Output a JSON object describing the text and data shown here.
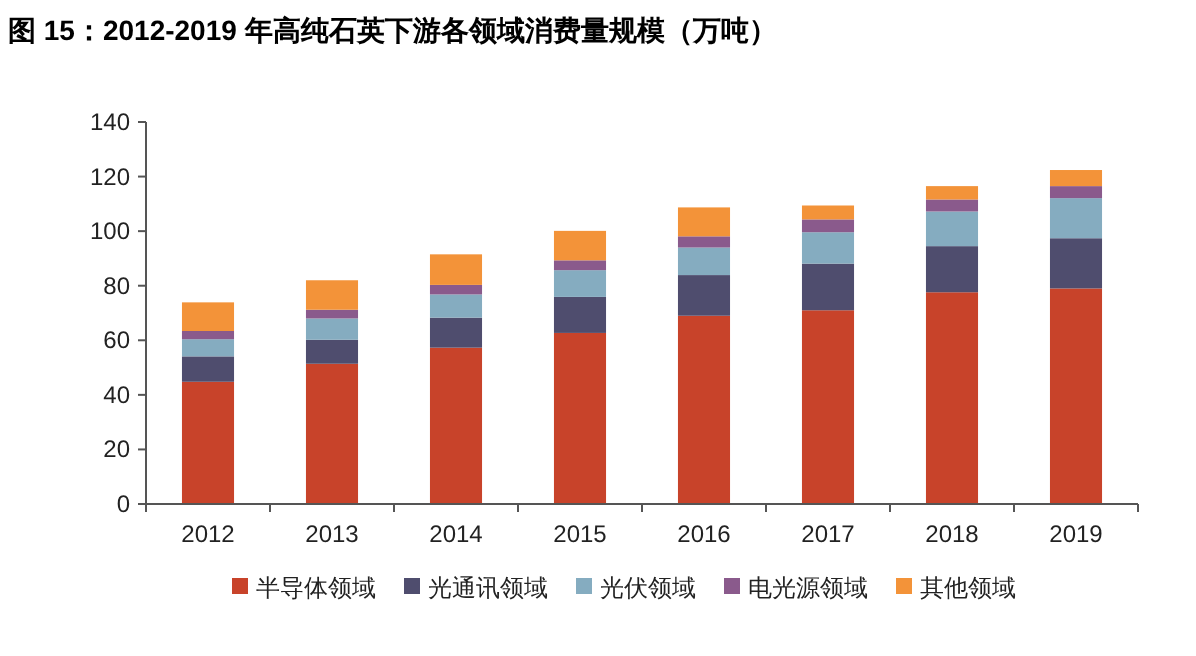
{
  "chart_data": {
    "type": "bar",
    "title": "图 15：2012-2019 年高纯石英下游各领域消费量规模（万吨）",
    "categories": [
      "2012",
      "2013",
      "2014",
      "2015",
      "2016",
      "2017",
      "2018",
      "2019"
    ],
    "stacked": true,
    "ylim": [
      0,
      140
    ],
    "yticks": [
      0,
      20,
      40,
      60,
      80,
      100,
      120,
      140
    ],
    "legend": "bottom",
    "series": [
      {
        "name": "半导体领域",
        "color": "#c8432a",
        "values": [
          44.8,
          51.4,
          57.3,
          62.7,
          69.0,
          71.0,
          77.6,
          79.0
        ]
      },
      {
        "name": "光通讯领域",
        "color": "#4f4d6e",
        "values": [
          9.3,
          8.8,
          11.0,
          13.2,
          14.9,
          17.1,
          16.9,
          18.4
        ]
      },
      {
        "name": "光伏领域",
        "color": "#85acc0",
        "values": [
          6.3,
          7.8,
          8.5,
          9.8,
          10.1,
          11.5,
          12.7,
          14.7
        ]
      },
      {
        "name": "电光源领域",
        "color": "#8a5a8c",
        "values": [
          3.0,
          3.2,
          3.5,
          3.6,
          4.1,
          4.7,
          4.4,
          4.4
        ]
      },
      {
        "name": "其他领域",
        "color": "#f39339",
        "values": [
          10.5,
          10.8,
          11.2,
          10.8,
          10.6,
          5.1,
          4.9,
          5.9
        ]
      }
    ]
  }
}
